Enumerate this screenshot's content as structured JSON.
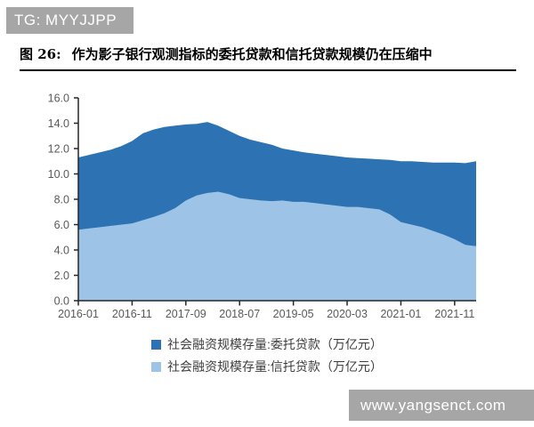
{
  "badge": {
    "text": "TG: MYYJJPP"
  },
  "figure": {
    "label": "图 26:",
    "title": "作为影子银行观测指标的委托贷款和信托贷款规模仍在压缩中"
  },
  "chart_data": {
    "type": "area",
    "mode": "overlapping",
    "title": "作为影子银行观测指标的委托贷款和信托贷款规模仍在压缩中",
    "unit": "万亿元",
    "x_unit": "months since 2016-01, ending 2022-03",
    "x": [
      0,
      2,
      4,
      6,
      8,
      10,
      12,
      14,
      16,
      18,
      20,
      22,
      24,
      26,
      28,
      30,
      32,
      34,
      36,
      38,
      40,
      42,
      44,
      46,
      48,
      50,
      52,
      54,
      56,
      58,
      60,
      62,
      64,
      66,
      68,
      70,
      72,
      74
    ],
    "x_max": 74,
    "series": [
      {
        "name": "社会融资规模存量:委托贷款（万亿元）",
        "color": "#2d72b2",
        "values": [
          11.3,
          11.5,
          11.7,
          11.9,
          12.2,
          12.6,
          13.2,
          13.5,
          13.7,
          13.8,
          13.9,
          13.95,
          14.1,
          13.8,
          13.4,
          13.0,
          12.7,
          12.5,
          12.3,
          12.0,
          11.85,
          11.7,
          11.6,
          11.5,
          11.4,
          11.3,
          11.25,
          11.2,
          11.15,
          11.1,
          11.0,
          11.0,
          10.95,
          10.9,
          10.9,
          10.9,
          10.85,
          11.0
        ]
      },
      {
        "name": "社会融资规模存量:信托贷款（万亿元）",
        "color": "#9dc3e6",
        "values": [
          5.6,
          5.7,
          5.8,
          5.9,
          6.0,
          6.1,
          6.35,
          6.6,
          6.9,
          7.3,
          7.9,
          8.3,
          8.5,
          8.6,
          8.4,
          8.1,
          8.0,
          7.9,
          7.85,
          7.9,
          7.8,
          7.8,
          7.7,
          7.6,
          7.5,
          7.4,
          7.4,
          7.3,
          7.2,
          6.8,
          6.2,
          6.0,
          5.8,
          5.5,
          5.2,
          4.85,
          4.4,
          4.3
        ]
      }
    ],
    "ylim": [
      0,
      16
    ],
    "yticks": [
      0,
      2,
      4,
      6,
      8,
      10,
      12,
      14,
      16
    ],
    "ytick_decimals": 1,
    "xticks": [
      {
        "pos": 0,
        "label": "2016-01"
      },
      {
        "pos": 10,
        "label": "2016-11"
      },
      {
        "pos": 20,
        "label": "2017-09"
      },
      {
        "pos": 30,
        "label": "2018-07"
      },
      {
        "pos": 40,
        "label": "2019-05"
      },
      {
        "pos": 50,
        "label": "2020-03"
      },
      {
        "pos": 60,
        "label": "2021-01"
      },
      {
        "pos": 70,
        "label": "2021-11"
      }
    ],
    "grid": false,
    "legend_position": "bottom"
  },
  "legend": {
    "items": [
      {
        "label": "社会融资规模存量:委托贷款（万亿元）",
        "color": "#2d72b2"
      },
      {
        "label": "社会融资规模存量:信托贷款（万亿元）",
        "color": "#9dc3e6"
      }
    ]
  },
  "watermark": {
    "text": "www.yangsenct.com"
  },
  "colors": {
    "dark_blue": "#2d72b2",
    "light_blue": "#9dc3e6",
    "badge_gray": "#a6a6a6",
    "axis": "#262626",
    "tick_label": "#595959",
    "title_text": "#000000",
    "legend_text": "#3f3f3f"
  }
}
